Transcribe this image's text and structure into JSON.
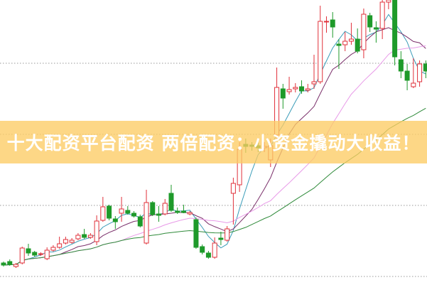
{
  "banner": {
    "text": "十大配资平台配资 两倍配资：小资金撬动大收益！"
  },
  "chart_data": {
    "type": "candlestick",
    "title": "",
    "xlabel": "",
    "ylabel": "",
    "ylim": [
      0,
      400
    ],
    "grid": {
      "horizontal": true,
      "style": "dotted",
      "levels": [
        11,
        111,
        211,
        311
      ]
    },
    "colors": {
      "up": "#e0303a",
      "down": "#1e9a2a",
      "grid": "#999999",
      "banner": "#fcc864"
    },
    "moving_averages": [
      {
        "period": 5,
        "color": "#3a9cb8"
      },
      {
        "period": 10,
        "color": "#7a2f6a"
      },
      {
        "period": 20,
        "color": "#e89ae8"
      },
      {
        "period": 40,
        "color": "#2f8a3a"
      }
    ],
    "candles": [
      [
        30,
        32,
        25,
        27
      ],
      [
        32,
        35,
        26,
        28
      ],
      [
        25,
        30,
        23,
        28
      ],
      [
        30,
        53,
        28,
        51
      ],
      [
        50,
        57,
        40,
        44
      ],
      [
        45,
        47,
        39,
        41
      ],
      [
        42,
        45,
        40,
        43
      ],
      [
        36,
        52,
        34,
        48
      ],
      [
        48,
        55,
        46,
        52
      ],
      [
        52,
        67,
        50,
        57
      ],
      [
        58,
        67,
        56,
        63
      ],
      [
        59,
        65,
        57,
        62
      ],
      [
        64,
        72,
        62,
        69
      ],
      [
        70,
        78,
        64,
        66
      ],
      [
        66,
        72,
        64,
        69
      ],
      [
        60,
        97,
        55,
        89
      ],
      [
        90,
        123,
        88,
        109
      ],
      [
        110,
        112,
        90,
        93
      ],
      [
        92,
        96,
        78,
        88
      ],
      [
        100,
        123,
        88,
        106
      ],
      [
        104,
        110,
        98,
        100
      ],
      [
        100,
        103,
        94,
        96
      ],
      [
        95,
        98,
        80,
        82
      ],
      [
        58,
        133,
        56,
        115
      ],
      [
        115,
        117,
        96,
        98
      ],
      [
        99,
        110,
        88,
        97
      ],
      [
        99,
        120,
        97,
        114
      ],
      [
        128,
        140,
        102,
        104
      ],
      [
        103,
        108,
        99,
        101
      ],
      [
        103,
        112,
        100,
        101
      ],
      [
        99,
        103,
        97,
        101
      ],
      [
        91,
        94,
        50,
        52
      ],
      [
        53,
        56,
        42,
        45
      ],
      [
        44,
        47,
        36,
        38
      ],
      [
        38,
        66,
        36,
        58
      ],
      [
        65,
        74,
        55,
        63
      ],
      [
        62,
        82,
        60,
        78
      ],
      [
        128,
        150,
        84,
        142
      ],
      [
        140,
        200,
        130,
        190
      ],
      [
        197,
        205,
        185,
        194
      ],
      [
        196,
        200,
        188,
        194
      ],
      [
        195,
        202,
        186,
        192
      ],
      [
        192,
        200,
        186,
        194
      ],
      [
        175,
        205,
        165,
        195
      ],
      [
        210,
        305,
        205,
        277
      ],
      [
        275,
        282,
        247,
        262
      ],
      [
        271,
        292,
        267,
        274
      ],
      [
        275,
        283,
        270,
        277
      ],
      [
        278,
        287,
        268,
        272
      ],
      [
        273,
        282,
        270,
        275
      ],
      [
        282,
        323,
        275,
        285
      ],
      [
        285,
        392,
        282,
        370
      ],
      [
        369,
        377,
        354,
        370
      ],
      [
        372,
        383,
        347,
        362
      ],
      [
        338,
        345,
        303,
        336
      ],
      [
        337,
        355,
        328,
        342
      ],
      [
        342,
        368,
        337,
        345
      ],
      [
        345,
        360,
        325,
        328
      ],
      [
        330,
        388,
        318,
        380
      ],
      [
        378,
        382,
        355,
        362
      ],
      [
        361,
        370,
        340,
        359
      ],
      [
        360,
        400,
        345,
        397
      ],
      [
        397,
        400,
        387,
        400
      ],
      [
        400,
        400,
        308,
        320
      ],
      [
        316,
        328,
        290,
        300
      ],
      [
        300,
        310,
        273,
        287
      ],
      [
        278,
        318,
        276,
        283
      ],
      [
        285,
        315,
        278,
        310
      ],
      [
        310,
        315,
        290,
        300
      ]
    ]
  }
}
